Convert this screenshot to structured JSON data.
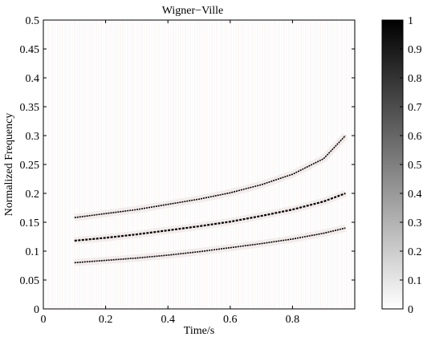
{
  "chart_data": {
    "type": "heatmap",
    "title": "Wigner−Ville",
    "xlabel": "Time/s",
    "ylabel": "Normalized Frequency",
    "xlim": [
      0,
      1
    ],
    "ylim": [
      0,
      0.5
    ],
    "x_ticks": [
      0,
      0.2,
      0.4,
      0.6,
      0.8
    ],
    "x_tick_labels": [
      "0",
      "0.2",
      "0.4",
      "0.6",
      "0.8"
    ],
    "y_ticks": [
      0,
      0.05,
      0.1,
      0.15,
      0.2,
      0.25,
      0.3,
      0.35,
      0.4,
      0.45,
      0.5
    ],
    "y_tick_labels": [
      "0",
      "0.05",
      "0.1",
      "0.15",
      "0.2",
      "0.25",
      "0.3",
      "0.35",
      "0.4",
      "0.45",
      "0.5"
    ],
    "colorbar": {
      "range": [
        0,
        1
      ],
      "colormap": "white-to-black",
      "ticks": [
        0,
        0.1,
        0.2,
        0.3,
        0.4,
        0.5,
        0.6,
        0.7,
        0.8,
        0.9,
        1
      ],
      "tick_labels": [
        "0",
        "0.1",
        "0.2",
        "0.3",
        "0.4",
        "0.5",
        "0.6",
        "0.7",
        "0.8",
        "0.9",
        "1"
      ]
    },
    "series": [
      {
        "x": [
          0.1,
          0.2,
          0.3,
          0.4,
          0.5,
          0.6,
          0.7,
          0.8,
          0.9,
          0.97
        ],
        "y": [
          0.08,
          0.084,
          0.088,
          0.093,
          0.099,
          0.106,
          0.113,
          0.121,
          0.131,
          0.14
        ]
      },
      {
        "x": [
          0.1,
          0.2,
          0.3,
          0.4,
          0.5,
          0.6,
          0.7,
          0.8,
          0.9,
          0.97
        ],
        "y": [
          0.118,
          0.123,
          0.129,
          0.136,
          0.143,
          0.151,
          0.161,
          0.172,
          0.186,
          0.2
        ]
      },
      {
        "x": [
          0.1,
          0.2,
          0.3,
          0.4,
          0.5,
          0.6,
          0.7,
          0.8,
          0.9,
          0.97
        ],
        "y": [
          0.158,
          0.165,
          0.172,
          0.181,
          0.19,
          0.201,
          0.215,
          0.233,
          0.26,
          0.3
        ]
      }
    ],
    "grid": false
  }
}
